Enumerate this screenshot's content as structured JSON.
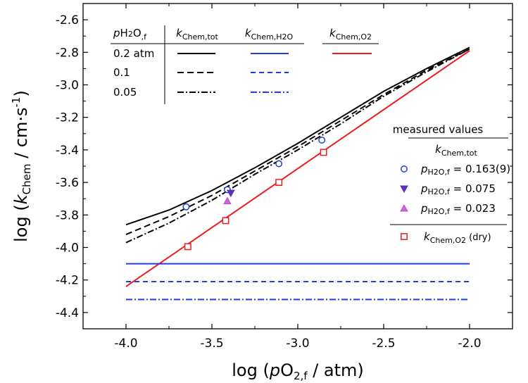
{
  "chart_data": {
    "type": "line",
    "xlim": [
      -4.25,
      -1.75
    ],
    "ylim": [
      -4.5,
      -2.5
    ],
    "x_ticks": [
      {
        "v": -4.0,
        "label": "-4.0"
      },
      {
        "v": -3.5,
        "label": "-3.5"
      },
      {
        "v": -3.0,
        "label": "-3.0"
      },
      {
        "v": -2.5,
        "label": "-2.5"
      },
      {
        "v": -2.0,
        "label": "-2.0"
      }
    ],
    "y_ticks": [
      {
        "v": -2.6,
        "label": "-2.6"
      },
      {
        "v": -2.8,
        "label": "-2.8"
      },
      {
        "v": -3.0,
        "label": "-3.0"
      },
      {
        "v": -3.2,
        "label": "-3.2"
      },
      {
        "v": -3.4,
        "label": "-3.4"
      },
      {
        "v": -3.6,
        "label": "-3.6"
      },
      {
        "v": -3.8,
        "label": "-3.8"
      },
      {
        "v": -4.0,
        "label": "-4.0"
      },
      {
        "v": -4.2,
        "label": "-4.2"
      },
      {
        "v": -4.4,
        "label": "-4.4"
      }
    ],
    "xlabel": {
      "pre": "log (",
      "italic": "p",
      "main": "O",
      "sub": "2,f",
      "post": " / atm)"
    },
    "ylabel": {
      "pre": "log (",
      "italic": "k",
      "sub": "Chem",
      "post": " / cm·s",
      "sup": "-1",
      "end": ")"
    },
    "series": [
      {
        "key": "tot_02",
        "color": "#000000",
        "dash": "",
        "x": [
          -4.0,
          -3.75,
          -3.5,
          -3.25,
          -3.0,
          -2.75,
          -2.5,
          -2.25,
          -2.0
        ],
        "y": [
          -3.86,
          -3.77,
          -3.65,
          -3.51,
          -3.36,
          -3.2,
          -3.04,
          -2.9,
          -2.77
        ]
      },
      {
        "key": "tot_01",
        "color": "#000000",
        "dash": "9,5",
        "x": [
          -4.0,
          -3.75,
          -3.5,
          -3.25,
          -3.0,
          -2.75,
          -2.5,
          -2.25,
          -2.0
        ],
        "y": [
          -3.92,
          -3.81,
          -3.68,
          -3.53,
          -3.38,
          -3.22,
          -3.06,
          -2.91,
          -2.78
        ]
      },
      {
        "key": "tot_005",
        "color": "#000000",
        "dash": "9,3,2,3",
        "x": [
          -4.0,
          -3.75,
          -3.5,
          -3.25,
          -3.0,
          -2.75,
          -2.5,
          -2.25,
          -2.0
        ],
        "y": [
          -3.97,
          -3.85,
          -3.71,
          -3.55,
          -3.4,
          -3.24,
          -3.07,
          -2.92,
          -2.78
        ]
      },
      {
        "key": "o2",
        "color": "#ee1c1c",
        "dash": "",
        "x": [
          -4.0,
          -2.0
        ],
        "y": [
          -4.24,
          -2.79
        ]
      },
      {
        "key": "h2o_02",
        "color": "#1f3fd6",
        "dash": "",
        "x": [
          -4.0,
          -2.0
        ],
        "y": [
          -4.1,
          -4.1
        ]
      },
      {
        "key": "h2o_01",
        "color": "#1f3fd6",
        "dash": "7,5",
        "x": [
          -4.0,
          -2.0
        ],
        "y": [
          -4.21,
          -4.21
        ]
      },
      {
        "key": "h2o_005",
        "color": "#1f3fd6",
        "dash": "9,3,2,3",
        "x": [
          -4.0,
          -2.0
        ],
        "y": [
          -4.32,
          -4.32
        ]
      }
    ],
    "points": [
      {
        "key": "m_0163",
        "marker": "circle",
        "color": "#1f3fd6",
        "data": [
          [
            -3.65,
            -3.75
          ],
          [
            -3.41,
            -3.645
          ],
          [
            -3.11,
            -3.485
          ],
          [
            -2.86,
            -3.34
          ]
        ]
      },
      {
        "key": "m_0075",
        "marker": "triangle-down",
        "color": "#5b2fb8",
        "data": [
          [
            -3.39,
            -3.665
          ]
        ]
      },
      {
        "key": "m_0023",
        "marker": "triangle-up",
        "color": "#c24ad6",
        "data": [
          [
            -3.41,
            -3.715
          ]
        ]
      },
      {
        "key": "m_o2",
        "marker": "square",
        "color": "#ee1c1c",
        "data": [
          [
            -3.64,
            -3.995
          ],
          [
            -3.42,
            -3.835
          ],
          [
            -3.11,
            -3.6
          ],
          [
            -2.85,
            -3.415
          ]
        ]
      }
    ],
    "legend_lines": {
      "header": {
        "italic": "p",
        "main": "H",
        "main_small": "2",
        "main2": "O",
        "sub": ",f"
      },
      "col_tot": {
        "italic": "k",
        "sub": "Chem,tot"
      },
      "col_h2o": {
        "italic": "k",
        "sub": "Chem,H2O"
      },
      "col_o2": {
        "italic": "k",
        "sub": "Chem,O2"
      },
      "rows": [
        {
          "label": "0.2 atm",
          "tot": "tot_02",
          "h2o": "h2o_02",
          "o2": "o2"
        },
        {
          "label": "0.1",
          "tot": "tot_01",
          "h2o": "h2o_01"
        },
        {
          "label": "0.05",
          "tot": "tot_005",
          "h2o": "h2o_005"
        }
      ]
    },
    "legend_points": {
      "title": "measured values",
      "subtitle": {
        "italic": "k",
        "sub": "Chem,tot"
      },
      "entries": [
        {
          "marker_key": "m_0163",
          "italic": "p",
          "main": "H2O,f",
          "value": " = 0.163(9)"
        },
        {
          "marker_key": "m_0075",
          "italic": "p",
          "main": "H2O,f",
          "value": " = 0.075"
        },
        {
          "marker_key": "m_0023",
          "italic": "p",
          "main": "H2O,f",
          "value": " = 0.023"
        }
      ],
      "o2_entry": {
        "marker_key": "m_o2",
        "italic": "k",
        "sub": "Chem,O2",
        "note": "(dry)"
      }
    }
  }
}
